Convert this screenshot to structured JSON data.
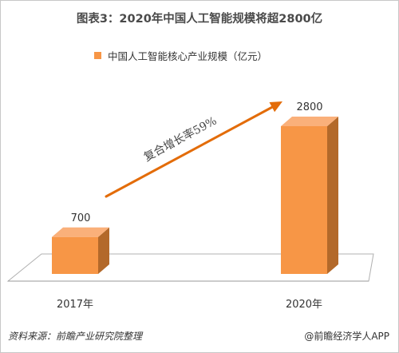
{
  "title": "图表3：2020年中国人工智能规模将超2800亿",
  "source_note": "资料来源：前瞻产业研究院整理",
  "credit": "@前瞻经济学人APP",
  "colors": {
    "bar_front": "#f79646",
    "bar_top": "#fab07a",
    "bar_side": "#b3692a",
    "arrow": "#e36c09",
    "floor_line": "#b0b0b0"
  },
  "chart_data": {
    "type": "bar",
    "title": "图表3：2020年中国人工智能规模将超2800亿",
    "categories": [
      "2017年",
      "2020年"
    ],
    "series": [
      {
        "name": "中国人工智能核心产业规模（亿元）",
        "values": [
          700,
          2800
        ]
      }
    ],
    "data_labels": [
      "700",
      "2800"
    ],
    "annotation": "复合增长率59%",
    "legend_position": "top",
    "grid": false,
    "three_d": true
  }
}
